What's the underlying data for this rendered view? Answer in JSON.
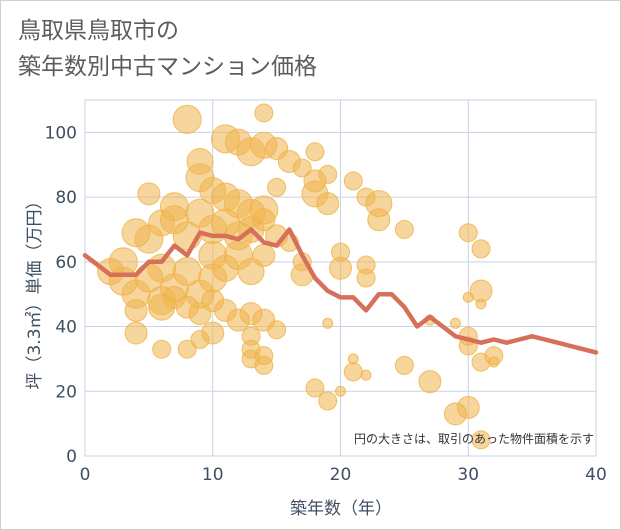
{
  "title_line1": "鳥取県鳥取市の",
  "title_line2": "築年数別中古マンション価格",
  "chart_data": {
    "type": "scatter",
    "title": "鳥取県鳥取市の 築年数別中古マンション価格",
    "xlabel": "築年数（年）",
    "ylabel": "坪（3.3㎡）単価（万円）",
    "xlim": [
      0,
      40
    ],
    "ylim": [
      0,
      110
    ],
    "xticks": [
      0,
      10,
      20,
      30,
      40
    ],
    "yticks": [
      0,
      20,
      40,
      60,
      80,
      100
    ],
    "grid": true,
    "note": "円の大きさは、取引のあった物件面積を示す",
    "colors": {
      "bubble": "#f0b44c",
      "trend": "#d6705a",
      "grid": "#c7d3e1",
      "text": "#3f4f62"
    },
    "bubbles": [
      {
        "x": 8,
        "y": 104,
        "s": 3
      },
      {
        "x": 14,
        "y": 106,
        "s": 1.5
      },
      {
        "x": 11,
        "y": 98,
        "s": 3
      },
      {
        "x": 12,
        "y": 97,
        "s": 2.5
      },
      {
        "x": 9,
        "y": 91,
        "s": 2.5
      },
      {
        "x": 13,
        "y": 94,
        "s": 3
      },
      {
        "x": 14,
        "y": 96,
        "s": 2.5
      },
      {
        "x": 15,
        "y": 95,
        "s": 2
      },
      {
        "x": 16,
        "y": 91,
        "s": 2
      },
      {
        "x": 18,
        "y": 94,
        "s": 1.5
      },
      {
        "x": 17,
        "y": 89,
        "s": 1.5
      },
      {
        "x": 19,
        "y": 87,
        "s": 1.5
      },
      {
        "x": 18,
        "y": 85,
        "s": 2
      },
      {
        "x": 21,
        "y": 85,
        "s": 1.5
      },
      {
        "x": 5,
        "y": 81,
        "s": 2
      },
      {
        "x": 7,
        "y": 77,
        "s": 3
      },
      {
        "x": 9,
        "y": 86,
        "s": 3
      },
      {
        "x": 10,
        "y": 82,
        "s": 2.5
      },
      {
        "x": 11,
        "y": 80,
        "s": 3
      },
      {
        "x": 12,
        "y": 78,
        "s": 3
      },
      {
        "x": 13,
        "y": 75,
        "s": 3
      },
      {
        "x": 14,
        "y": 76,
        "s": 3
      },
      {
        "x": 15,
        "y": 83,
        "s": 1.5
      },
      {
        "x": 18,
        "y": 81,
        "s": 2.5
      },
      {
        "x": 19,
        "y": 78,
        "s": 2
      },
      {
        "x": 22,
        "y": 80,
        "s": 1.5
      },
      {
        "x": 23,
        "y": 78,
        "s": 2.5
      },
      {
        "x": 23,
        "y": 73,
        "s": 2
      },
      {
        "x": 25,
        "y": 70,
        "s": 1.5
      },
      {
        "x": 30,
        "y": 69,
        "s": 1.5
      },
      {
        "x": 31,
        "y": 64,
        "s": 1.5
      },
      {
        "x": 4,
        "y": 69,
        "s": 3
      },
      {
        "x": 5,
        "y": 67,
        "s": 3
      },
      {
        "x": 6,
        "y": 72,
        "s": 2.5
      },
      {
        "x": 7,
        "y": 73,
        "s": 3
      },
      {
        "x": 8,
        "y": 68,
        "s": 3
      },
      {
        "x": 9,
        "y": 75,
        "s": 3
      },
      {
        "x": 10,
        "y": 70,
        "s": 3
      },
      {
        "x": 11,
        "y": 72,
        "s": 3
      },
      {
        "x": 12,
        "y": 68,
        "s": 3
      },
      {
        "x": 13,
        "y": 70,
        "s": 2.5
      },
      {
        "x": 14,
        "y": 73,
        "s": 2
      },
      {
        "x": 15,
        "y": 68,
        "s": 2
      },
      {
        "x": 16,
        "y": 66,
        "s": 1.5
      },
      {
        "x": 2,
        "y": 57,
        "s": 2.5
      },
      {
        "x": 3,
        "y": 60,
        "s": 3
      },
      {
        "x": 3,
        "y": 54,
        "s": 3
      },
      {
        "x": 4,
        "y": 50,
        "s": 3
      },
      {
        "x": 5,
        "y": 55,
        "s": 3
      },
      {
        "x": 6,
        "y": 48,
        "s": 3
      },
      {
        "x": 6,
        "y": 58,
        "s": 3
      },
      {
        "x": 7,
        "y": 52,
        "s": 3
      },
      {
        "x": 8,
        "y": 57,
        "s": 3
      },
      {
        "x": 9,
        "y": 50,
        "s": 3
      },
      {
        "x": 10,
        "y": 62,
        "s": 3
      },
      {
        "x": 10,
        "y": 55,
        "s": 3
      },
      {
        "x": 11,
        "y": 58,
        "s": 2.5
      },
      {
        "x": 12,
        "y": 62,
        "s": 3
      },
      {
        "x": 13,
        "y": 57,
        "s": 2.5
      },
      {
        "x": 14,
        "y": 62,
        "s": 2
      },
      {
        "x": 17,
        "y": 60,
        "s": 1.5
      },
      {
        "x": 17,
        "y": 56,
        "s": 2
      },
      {
        "x": 20,
        "y": 63,
        "s": 1.5
      },
      {
        "x": 20,
        "y": 58,
        "s": 2
      },
      {
        "x": 22,
        "y": 59,
        "s": 1.5
      },
      {
        "x": 22,
        "y": 55,
        "s": 1.5
      },
      {
        "x": 4,
        "y": 45,
        "s": 2
      },
      {
        "x": 6,
        "y": 46,
        "s": 2.5
      },
      {
        "x": 7,
        "y": 49,
        "s": 2
      },
      {
        "x": 8,
        "y": 46,
        "s": 2
      },
      {
        "x": 9,
        "y": 44,
        "s": 2
      },
      {
        "x": 10,
        "y": 48,
        "s": 2
      },
      {
        "x": 11,
        "y": 45,
        "s": 2
      },
      {
        "x": 12,
        "y": 42,
        "s": 2
      },
      {
        "x": 13,
        "y": 44,
        "s": 2
      },
      {
        "x": 14,
        "y": 42,
        "s": 2
      },
      {
        "x": 15,
        "y": 39,
        "s": 1.5
      },
      {
        "x": 4,
        "y": 38,
        "s": 2
      },
      {
        "x": 6,
        "y": 33,
        "s": 1.5
      },
      {
        "x": 8,
        "y": 33,
        "s": 1.5
      },
      {
        "x": 9,
        "y": 36,
        "s": 1.5
      },
      {
        "x": 10,
        "y": 38,
        "s": 2
      },
      {
        "x": 13,
        "y": 37,
        "s": 1.5
      },
      {
        "x": 13,
        "y": 33,
        "s": 1.5
      },
      {
        "x": 14,
        "y": 31,
        "s": 1.5
      },
      {
        "x": 13,
        "y": 30,
        "s": 1.5
      },
      {
        "x": 14,
        "y": 28,
        "s": 1.5
      },
      {
        "x": 31,
        "y": 51,
        "s": 2
      },
      {
        "x": 30,
        "y": 49,
        "s": 1
      },
      {
        "x": 29,
        "y": 41,
        "s": 1
      },
      {
        "x": 30,
        "y": 37,
        "s": 1.5
      },
      {
        "x": 30,
        "y": 34,
        "s": 1.5
      },
      {
        "x": 31,
        "y": 47,
        "s": 1
      },
      {
        "x": 32,
        "y": 31,
        "s": 1.5
      },
      {
        "x": 31,
        "y": 29,
        "s": 1.5
      },
      {
        "x": 27,
        "y": 42,
        "s": 1
      },
      {
        "x": 27,
        "y": 23,
        "s": 2
      },
      {
        "x": 25,
        "y": 28,
        "s": 1.5
      },
      {
        "x": 21,
        "y": 30,
        "s": 1
      },
      {
        "x": 21,
        "y": 26,
        "s": 1.5
      },
      {
        "x": 22,
        "y": 25,
        "s": 1
      },
      {
        "x": 19,
        "y": 41,
        "s": 1
      },
      {
        "x": 18,
        "y": 21,
        "s": 1.5
      },
      {
        "x": 19,
        "y": 17,
        "s": 1.5
      },
      {
        "x": 20,
        "y": 20,
        "s": 1
      },
      {
        "x": 30,
        "y": 15,
        "s": 2
      },
      {
        "x": 29,
        "y": 13,
        "s": 2
      },
      {
        "x": 31,
        "y": 5,
        "s": 1.5
      },
      {
        "x": 32,
        "y": 29,
        "s": 1
      }
    ],
    "trend": {
      "x": [
        0,
        2,
        3,
        4,
        5,
        6,
        7,
        8,
        9,
        10,
        11,
        12,
        13,
        14,
        15,
        16,
        17,
        18,
        19,
        20,
        21,
        22,
        23,
        24,
        25,
        26,
        27,
        28,
        29,
        30,
        31,
        32,
        33,
        34,
        35,
        36,
        37,
        38,
        39,
        40
      ],
      "y": [
        62,
        56,
        56,
        56,
        60,
        60,
        65,
        62,
        69,
        68,
        68,
        67,
        70,
        66,
        65,
        70,
        62,
        55,
        51,
        49,
        49,
        45,
        50,
        50,
        46,
        40,
        43,
        40,
        37,
        36,
        35,
        36,
        35,
        36,
        37,
        36,
        35,
        34,
        33,
        32
      ]
    }
  }
}
